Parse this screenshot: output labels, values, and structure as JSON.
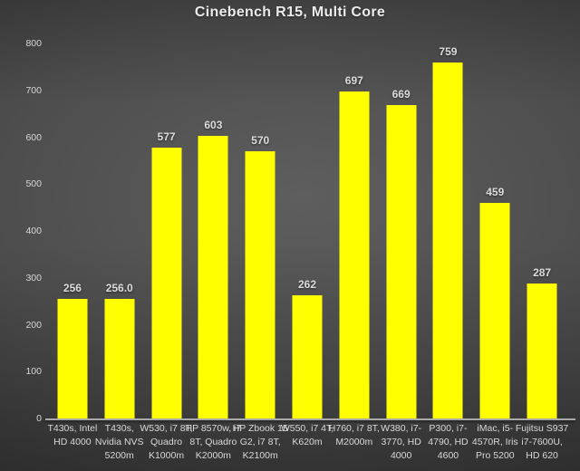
{
  "chart_data": {
    "type": "bar",
    "title": "Cinebench R15, Multi Core",
    "categories": [
      "T430s, Intel HD 4000",
      "T430s, Nvidia NVS 5200m",
      "W530, i7 8T, Quadro K1000m",
      "HP 8570w, i7 8T, Quadro K2000m",
      "HP Zbook 15 G2, i7 8T, K2100m",
      "W550, i7 4T, K620m",
      "H760, i7 8T, M2000m",
      "W380, i7-3770, HD 4000",
      "P300, i7-4790, HD 4600",
      "iMac, i5-4570R, Iris Pro 5200",
      "Fujitsu S937 i7-7600U, HD 620"
    ],
    "category_lines": [
      [
        "T430s, Intel",
        "HD 4000"
      ],
      [
        "T430s,",
        "Nvidia NVS",
        "5200m"
      ],
      [
        "W530, i7 8T,",
        "Quadro",
        "K1000m"
      ],
      [
        "HP 8570w, i7",
        "8T, Quadro",
        "K2000m"
      ],
      [
        "HP Zbook 15",
        "G2, i7 8T,",
        "K2100m"
      ],
      [
        "W550, i7 4T,",
        "K620m"
      ],
      [
        "H760, i7 8T,",
        "M2000m"
      ],
      [
        "W380, i7-",
        "3770, HD",
        "4000"
      ],
      [
        "P300, i7-",
        "4790, HD",
        "4600"
      ],
      [
        "iMac, i5-",
        "4570R, Iris",
        "Pro 5200"
      ],
      [
        "Fujitsu S937",
        "i7-7600U,",
        "HD 620"
      ]
    ],
    "values": [
      256,
      256.0,
      577,
      603,
      570,
      262,
      697,
      669,
      759,
      459,
      287
    ],
    "value_labels": [
      "256",
      "256.0",
      "577",
      "603",
      "570",
      "262",
      "697",
      "669",
      "759",
      "459",
      "287"
    ],
    "xlabel": "",
    "ylabel": "",
    "ylim": [
      0,
      800
    ],
    "ytick_step": 100,
    "ytick_labels": [
      "0",
      "100",
      "200",
      "300",
      "400",
      "500",
      "600",
      "700",
      "800"
    ],
    "grid": false,
    "legend": false,
    "bar_color": "#ffff00",
    "title_color": "#ececec",
    "value_label_color": "#dcdcdc",
    "tick_label_color": "#d9d9d9",
    "axis_line_color": "#aaaaaa",
    "background_center_color": "#5e5e5e",
    "background_edge_color": "#2a2a2a"
  }
}
